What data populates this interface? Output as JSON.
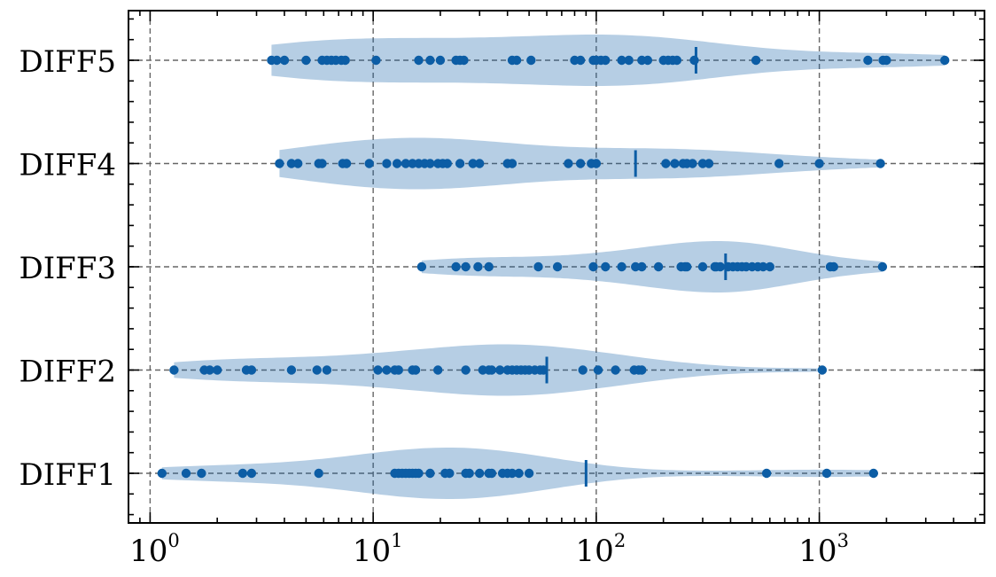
{
  "chart_data": {
    "type": "violin",
    "orientation": "horizontal",
    "title": "",
    "xlabel": "",
    "ylabel": "",
    "x_scale": "log",
    "xlim": [
      0.8,
      5500
    ],
    "x_tick_labels": [
      {
        "base": "10",
        "exp": "0",
        "value": 1
      },
      {
        "base": "10",
        "exp": "1",
        "value": 10
      },
      {
        "base": "10",
        "exp": "2",
        "value": 100
      },
      {
        "base": "10",
        "exp": "3",
        "value": 1000
      }
    ],
    "grid": true,
    "colors": {
      "points": "#0C5DA5",
      "violin": "#0C5DA5",
      "violin_alpha": 0.3,
      "grid": "#666666"
    },
    "categories": [
      "DIFF1",
      "DIFF2",
      "DIFF3",
      "DIFF4",
      "DIFF5"
    ],
    "series": [
      {
        "category": "DIFF1",
        "mean": 90,
        "points": [
          1.13,
          1.45,
          1.7,
          2.6,
          2.85,
          5.7,
          12.5,
          13,
          13.5,
          14,
          14.5,
          15,
          15.5,
          16,
          18,
          21,
          22,
          26,
          27,
          30,
          33,
          34,
          38,
          40,
          42,
          45,
          50,
          580,
          1080,
          1750
        ]
      },
      {
        "category": "DIFF2",
        "mean": 60,
        "points": [
          1.28,
          1.75,
          1.85,
          2.0,
          2.7,
          2.85,
          4.3,
          5.6,
          6.2,
          10.5,
          11.5,
          12.5,
          13,
          15,
          15.5,
          19.5,
          26,
          31,
          33,
          34,
          37,
          40,
          42,
          44,
          46,
          48,
          50,
          53,
          56,
          58,
          87,
          102,
          122,
          148,
          155,
          160,
          1030
        ]
      },
      {
        "category": "DIFF3",
        "mean": 380,
        "points": [
          16.5,
          23.5,
          26,
          29.5,
          33,
          55,
          67,
          97,
          110,
          130,
          150,
          160,
          190,
          240,
          250,
          255,
          300,
          340,
          345,
          360,
          390,
          410,
          430,
          450,
          470,
          500,
          530,
          560,
          600,
          1120,
          1160,
          1920
        ]
      },
      {
        "category": "DIFF4",
        "mean": 150,
        "points": [
          3.8,
          4.3,
          4.6,
          5.7,
          5.9,
          7.3,
          7.6,
          9.6,
          11.5,
          12.8,
          14,
          15,
          16,
          17,
          18,
          19.5,
          20.5,
          21.5,
          24.5,
          28,
          30,
          40,
          42,
          75,
          85,
          95,
          100,
          205,
          225,
          245,
          255,
          270,
          300,
          320,
          660,
          1000,
          1880
        ]
      },
      {
        "category": "DIFF5",
        "mean": 280,
        "points": [
          3.5,
          3.7,
          4.0,
          5.0,
          5.9,
          6.2,
          6.5,
          6.8,
          7.2,
          7.5,
          10.3,
          16,
          18,
          20,
          23.5,
          24.5,
          25.5,
          42,
          44,
          51,
          80,
          85,
          97,
          100,
          105,
          110,
          130,
          140,
          160,
          170,
          200,
          210,
          220,
          230,
          275,
          520,
          1650,
          1930,
          2000,
          3650
        ]
      }
    ]
  }
}
